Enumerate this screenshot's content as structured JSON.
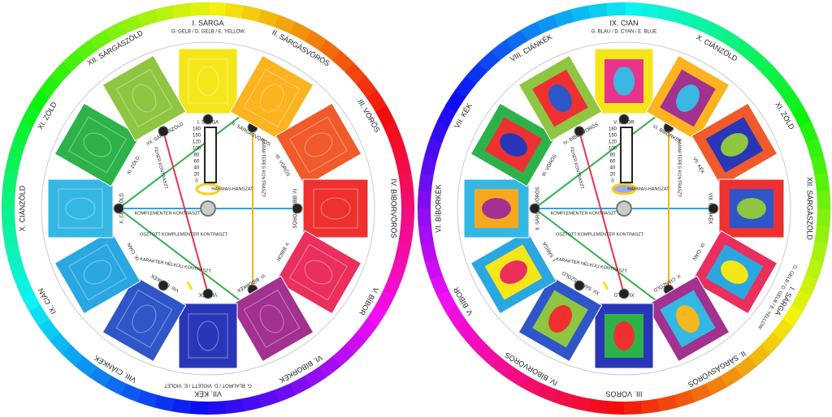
{
  "wheels": [
    {
      "segments": [
        {
          "ring": "I. SÁRGA",
          "sub": "G. GELB / D. GELB / E. YELLOW",
          "label": "I. SÁRGA",
          "color": "#f5e61a"
        },
        {
          "ring": "II. SÁRGÁSVÖRÖS",
          "label": "II. SÁRGÁSVÖRÖS",
          "color": "#fbb31f"
        },
        {
          "ring": "III. VÖRÖS",
          "label": "III. VÖRÖS",
          "color": "#f15a2b"
        },
        {
          "ring": "IV. BÍBORVÖRÖS",
          "label": "IV. BÍBORVÖRÖS",
          "color": "#ee3130"
        },
        {
          "ring": "V. BÍBOR",
          "label": "V. BÍBOR",
          "color": "#ea2f5d"
        },
        {
          "ring": "VI. BÍBORKÉK",
          "label": "VI. BÍBORKÉK",
          "color": "#a2318f"
        },
        {
          "ring": "VII. KÉK",
          "sub": "G. BLAUROT / D. VIOLETT / E. VIOLET",
          "label": "VII. KÉK",
          "color": "#2a36b8"
        },
        {
          "ring": "VIII. CIÁNKÉK",
          "label": "VIII. CIÁNKÉK",
          "color": "#2f56c8"
        },
        {
          "ring": "IX. CIÁN",
          "label": "IX. CIÁN",
          "color": "#2aa7e0"
        },
        {
          "ring": "X. CIÁNZÖLD",
          "label": "X. CIÁNZÖLD",
          "color": "#35b7e4"
        },
        {
          "ring": "XI. ZÖLD",
          "label": "XI. ZÖLD",
          "color": "#2db24a"
        },
        {
          "ring": "XII. SÁRGÁSZÖLD",
          "label": "XII. SÁRGÁSZÖLD",
          "color": "#8ec641"
        }
      ],
      "scale": [
        180,
        150,
        120,
        100,
        80,
        60,
        40,
        20,
        0
      ],
      "contrasts": [
        "KOMPLEMENTER KONTRASZT",
        "HÁRMAS-HANGZAT",
        "OSZTOTT KOMPLEMENTER KONTRASZT",
        "KARAKTERES KONTRASZT",
        "KARAKTER NÉLKÜLI KONTRASZT",
        "FEHÉR KONTRASZT"
      ]
    },
    {
      "segments": [
        {
          "ring": "IX. CIÁN",
          "sub": "G. BLAU / D. CYAN / E. BLUE",
          "label": "V. BÍBOR",
          "color": "#f5e61a",
          "mid": "#e8348a",
          "dot": "#3bb7e3"
        },
        {
          "ring": "X. CIÁNZÖLD",
          "label": "VI. BÍBORKÉK",
          "color": "#fbb31f",
          "mid": "#a2318f",
          "dot": "#3bb7e3"
        },
        {
          "ring": "XI. ZÖLD",
          "label": "VII. KÉK",
          "color": "#f15a2b",
          "mid": "#2a36b8",
          "dot": "#8ec641"
        },
        {
          "ring": "XII. SÁRGÁSZÖLD",
          "label": "VIII. CIÁNKÉK",
          "color": "#ee3130",
          "mid": "#2f56c8",
          "dot": "#8ec641"
        },
        {
          "ring": "I. SÁRGA",
          "sub": "G. GELB / D. GELB / E. YELLOW",
          "label": "IX. CIÁN",
          "color": "#ea2f5d",
          "mid": "#2aa7e0",
          "dot": "#f5e61a"
        },
        {
          "ring": "II. SÁRGÁSVÖRÖS",
          "label": "X. CIÁNZÖLD",
          "color": "#a2318f",
          "mid": "#35b7e4",
          "dot": "#f5b81f"
        },
        {
          "ring": "III. VÖRÖS",
          "label": "XI. ZÖLD",
          "color": "#2a36b8",
          "mid": "#2db24a",
          "dot": "#ee3130"
        },
        {
          "ring": "IV. BÍBORVÖRÖS",
          "label": "XII. SÁRGÁSZÖLD",
          "color": "#2f56c8",
          "mid": "#8ec641",
          "dot": "#ee3130"
        },
        {
          "ring": "V. BÍBOR",
          "label": "I. SÁRGA",
          "color": "#2aa7e0",
          "mid": "#f5e61a",
          "dot": "#ea2f5d"
        },
        {
          "ring": "VI. BÍBORKÉK",
          "label": "II. SÁRGÁSVÖRÖS",
          "color": "#35b7e4",
          "mid": "#f5a81f",
          "dot": "#a2318f"
        },
        {
          "ring": "VII. KÉK",
          "label": "III. VÖRÖS",
          "color": "#2db24a",
          "mid": "#ee3130",
          "dot": "#2a36b8"
        },
        {
          "ring": "VIII. CIÁNKÉK",
          "label": "IV. BÍBORVÖRÖS",
          "color": "#8ec641",
          "mid": "#ee3130",
          "dot": "#2f56c8"
        }
      ],
      "scale": [
        180,
        150,
        120,
        100,
        80,
        60,
        40,
        20,
        0
      ],
      "contrasts": [
        "KOMPLEMENTER KONTRASZT",
        "HÁRMAS-HANGZAT",
        "OSZTOTT KOMPLEMENTER KONTRASZT",
        "KARAKTERES KONTRASZT",
        "KARAKTER NÉLKÜLI KONTRASZT",
        "FEHÉR KONTRASZT"
      ]
    }
  ]
}
